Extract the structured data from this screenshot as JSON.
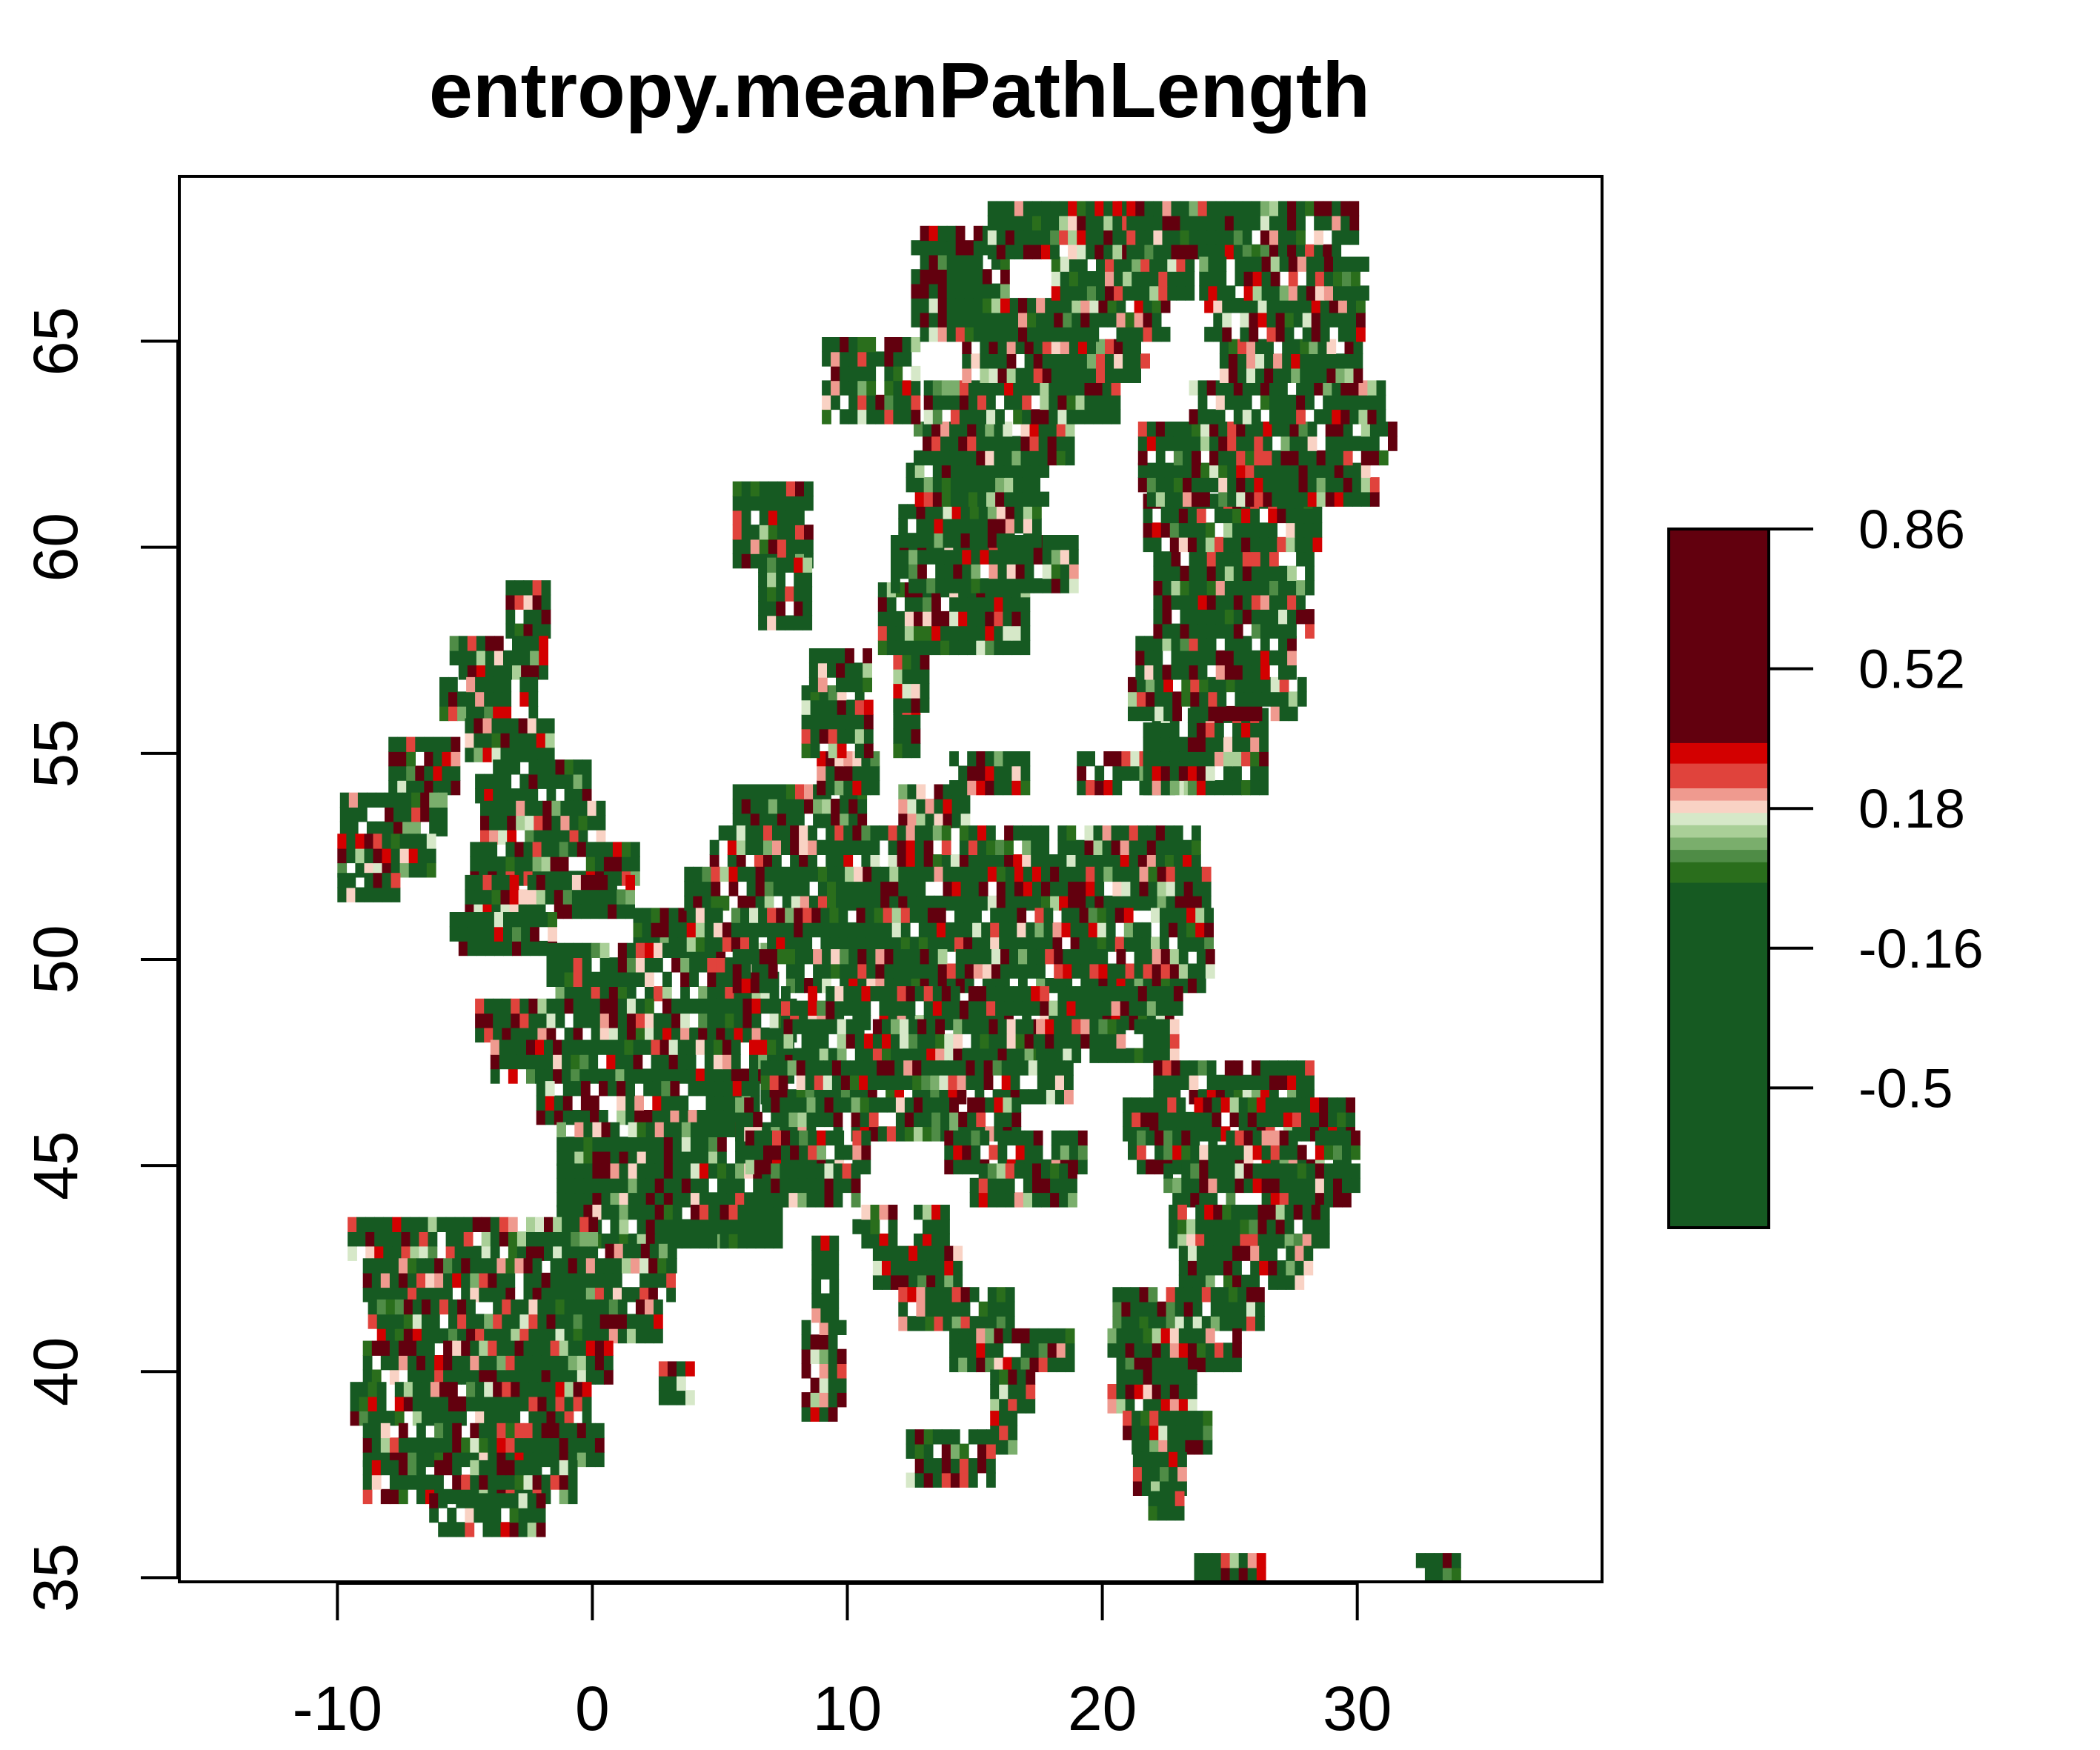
{
  "chart_data": {
    "type": "heatmap",
    "title": "entropy.meanPathLength",
    "xlabel": "",
    "ylabel": "",
    "xlim": [
      -16.2,
      39.6
    ],
    "ylim": [
      34.9,
      69.0
    ],
    "x_ticks": [
      -10,
      0,
      10,
      20,
      30
    ],
    "x_tick_labels": [
      "-10",
      "0",
      "10",
      "20",
      "30"
    ],
    "y_ticks": [
      35,
      40,
      45,
      50,
      55,
      60,
      65
    ],
    "y_tick_labels": [
      "35",
      "40",
      "45",
      "50",
      "55",
      "60",
      "65"
    ],
    "grid": false,
    "legend": "right",
    "color_scale": {
      "min": -0.84,
      "max": 0.86,
      "ticks": [
        0.86,
        0.52,
        0.18,
        -0.16,
        -0.5
      ],
      "tick_labels": [
        "0.86",
        "0.52",
        "0.18",
        "-0.16",
        "-0.5"
      ],
      "bands": [
        {
          "from": -0.84,
          "to": 0.0,
          "color": "#165a22"
        },
        {
          "from": 0.0,
          "to": 0.05,
          "color": "#2a6e1c"
        },
        {
          "from": 0.05,
          "to": 0.08,
          "color": "#4f8c46"
        },
        {
          "from": 0.08,
          "to": 0.11,
          "color": "#7aae6c"
        },
        {
          "from": 0.11,
          "to": 0.14,
          "color": "#a9cf97"
        },
        {
          "from": 0.14,
          "to": 0.17,
          "color": "#d6e8c8"
        },
        {
          "from": 0.17,
          "to": 0.2,
          "color": "#f9d2c4"
        },
        {
          "from": 0.2,
          "to": 0.23,
          "color": "#ef9a8f"
        },
        {
          "from": 0.23,
          "to": 0.29,
          "color": "#e0433c"
        },
        {
          "from": 0.29,
          "to": 0.34,
          "color": "#d30000"
        },
        {
          "from": 0.34,
          "to": 0.86,
          "color": "#62000e"
        }
      ]
    },
    "regions": [
      {
        "lat": [
          57.8,
          58.9
        ],
        "lon": [
          [
            -3.4,
            -1.8
          ]
        ]
      },
      {
        "lat": [
          56.8,
          57.8
        ],
        "lon": [
          [
            -5.6,
            -1.9
          ]
        ]
      },
      {
        "lat": [
          55.8,
          56.8
        ],
        "lon": [
          [
            -6.0,
            -2.5
          ]
        ]
      },
      {
        "lat": [
          54.8,
          55.8
        ],
        "lon": [
          [
            -5.0,
            -1.6
          ]
        ]
      },
      {
        "lat": [
          53.8,
          54.8
        ],
        "lon": [
          [
            -4.6,
            -0.3
          ]
        ]
      },
      {
        "lat": [
          52.8,
          53.8
        ],
        "lon": [
          [
            -4.4,
            0.4
          ]
        ]
      },
      {
        "lat": [
          51.8,
          52.8
        ],
        "lon": [
          [
            -4.8,
            1.6
          ]
        ]
      },
      {
        "lat": [
          51.0,
          51.8
        ],
        "lon": [
          [
            -5.0,
            1.4
          ]
        ]
      },
      {
        "lat": [
          50.1,
          51.0
        ],
        "lon": [
          [
            -5.6,
            -1.5
          ]
        ]
      },
      {
        "lat": [
          54.0,
          55.3
        ],
        "lon": [
          [
            -8.0,
            -5.5
          ]
        ]
      },
      {
        "lat": [
          53.0,
          54.0
        ],
        "lon": [
          [
            -9.9,
            -6.0
          ]
        ]
      },
      {
        "lat": [
          52.0,
          53.0
        ],
        "lon": [
          [
            -10.0,
            -6.2
          ]
        ]
      },
      {
        "lat": [
          51.4,
          52.0
        ],
        "lon": [
          [
            -10.0,
            -7.8
          ]
        ]
      },
      {
        "lat": [
          50.2,
          51.1
        ],
        "lon": [
          [
            1.6,
            4.6
          ]
        ]
      },
      {
        "lat": [
          49.0,
          50.2
        ],
        "lon": [
          [
            -1.8,
            7.2
          ]
        ]
      },
      {
        "lat": [
          48.0,
          49.0
        ],
        "lon": [
          [
            -4.6,
            7.8
          ]
        ]
      },
      {
        "lat": [
          47.0,
          48.0
        ],
        "lon": [
          [
            -4.0,
            7.6
          ]
        ]
      },
      {
        "lat": [
          46.0,
          47.0
        ],
        "lon": [
          [
            -2.2,
            6.5
          ]
        ]
      },
      {
        "lat": [
          45.0,
          46.0
        ],
        "lon": [
          [
            -1.4,
            6.8
          ]
        ]
      },
      {
        "lat": [
          44.0,
          45.0
        ],
        "lon": [
          [
            -1.4,
            7.4
          ]
        ]
      },
      {
        "lat": [
          43.0,
          44.0
        ],
        "lon": [
          [
            -1.4,
            5.0
          ],
          [
            5.0,
            7.2
          ]
        ]
      },
      {
        "lat": [
          42.4,
          43.0
        ],
        "lon": [
          [
            0.5,
            3.3
          ]
        ]
      },
      {
        "lat": [
          42.7,
          43.6
        ],
        "lon": [
          [
            -9.6,
            0.0
          ]
        ]
      },
      {
        "lat": [
          41.7,
          42.7
        ],
        "lon": [
          [
            -9.0,
            3.2
          ]
        ]
      },
      {
        "lat": [
          40.7,
          41.7
        ],
        "lon": [
          [
            -8.8,
            2.4
          ]
        ]
      },
      {
        "lat": [
          39.7,
          40.7
        ],
        "lon": [
          [
            -9.0,
            0.7
          ]
        ]
      },
      {
        "lat": [
          38.7,
          39.7
        ],
        "lon": [
          [
            -9.5,
            -0.1
          ]
        ]
      },
      {
        "lat": [
          37.7,
          38.7
        ],
        "lon": [
          [
            -9.0,
            0.2
          ]
        ]
      },
      {
        "lat": [
          36.8,
          37.7
        ],
        "lon": [
          [
            -9.0,
            -0.8
          ]
        ]
      },
      {
        "lat": [
          36.0,
          36.8
        ],
        "lon": [
          [
            -6.4,
            -2.0
          ]
        ]
      },
      {
        "lat": [
          53.2,
          54.0
        ],
        "lon": [
          [
            5.5,
            10.5
          ],
          [
            12.0,
            14.5
          ]
        ]
      },
      {
        "lat": [
          52.2,
          53.2
        ],
        "lon": [
          [
            4.6,
            23.6
          ]
        ]
      },
      {
        "lat": [
          51.2,
          52.2
        ],
        "lon": [
          [
            3.6,
            24.0
          ]
        ]
      },
      {
        "lat": [
          50.2,
          51.2
        ],
        "lon": [
          [
            3.0,
            24.2
          ]
        ]
      },
      {
        "lat": [
          49.2,
          50.2
        ],
        "lon": [
          [
            5.5,
            24.4
          ]
        ]
      },
      {
        "lat": [
          48.3,
          49.2
        ],
        "lon": [
          [
            7.4,
            23.0
          ]
        ]
      },
      {
        "lat": [
          47.5,
          48.3
        ],
        "lon": [
          [
            7.5,
            17.4
          ],
          [
            17.4,
            22.8
          ]
        ]
      },
      {
        "lat": [
          46.5,
          47.5
        ],
        "lon": [
          [
            6.6,
            18.6
          ],
          [
            22.0,
            28.2
          ]
        ]
      },
      {
        "lat": [
          45.6,
          46.5
        ],
        "lon": [
          [
            5.6,
            16.5
          ],
          [
            20.8,
            29.8
          ]
        ]
      },
      {
        "lat": [
          44.8,
          45.6
        ],
        "lon": [
          [
            6.0,
            10.8
          ],
          [
            13.8,
            19.2
          ],
          [
            21.0,
            30.0
          ]
        ]
      },
      {
        "lat": [
          44.0,
          44.8
        ],
        "lon": [
          [
            7.0,
            10.4
          ],
          [
            14.8,
            19.0
          ],
          [
            22.4,
            29.8
          ]
        ]
      },
      {
        "lat": [
          54.0,
          54.9
        ],
        "lon": [
          [
            8.8,
            11.2
          ],
          [
            14.0,
            17.0
          ],
          [
            19.0,
            23.5
          ]
        ]
      },
      {
        "lat": [
          54.9,
          56.5
        ],
        "lon": [
          [
            8.2,
            10.8
          ],
          [
            11.8,
            12.8
          ]
        ]
      },
      {
        "lat": [
          56.5,
          57.5
        ],
        "lon": [
          [
            8.5,
            10.6
          ]
        ]
      },
      {
        "lat": [
          54.0,
          55.8
        ],
        "lon": [
          [
            21.6,
            26.5
          ]
        ]
      },
      {
        "lat": [
          55.8,
          56.8
        ],
        "lon": [
          [
            21.0,
            27.8
          ]
        ]
      },
      {
        "lat": [
          56.8,
          57.8
        ],
        "lon": [
          [
            21.3,
            27.6
          ]
        ]
      },
      {
        "lat": [
          57.8,
          59.6
        ],
        "lon": [
          [
            22.0,
            28.0
          ]
        ]
      },
      {
        "lat": [
          43.0,
          44.0
        ],
        "lon": [
          [
            10.2,
            11.6
          ],
          [
            12.6,
            13.8
          ],
          [
            22.6,
            28.6
          ]
        ]
      },
      {
        "lat": [
          42.0,
          43.0
        ],
        "lon": [
          [
            11.0,
            14.2
          ],
          [
            23.0,
            28.0
          ]
        ]
      },
      {
        "lat": [
          41.0,
          42.0
        ],
        "lon": [
          [
            12.0,
            16.2
          ],
          [
            20.4,
            26.2
          ]
        ]
      },
      {
        "lat": [
          40.0,
          41.0
        ],
        "lon": [
          [
            14.0,
            18.6
          ],
          [
            20.2,
            25.2
          ]
        ]
      },
      {
        "lat": [
          39.0,
          40.0
        ],
        "lon": [
          [
            15.6,
            17.2
          ],
          [
            20.2,
            23.6
          ]
        ]
      },
      {
        "lat": [
          38.0,
          39.0
        ],
        "lon": [
          [
            15.6,
            16.4
          ],
          [
            20.8,
            24.0
          ]
        ]
      },
      {
        "lat": [
          37.0,
          38.0
        ],
        "lon": [
          [
            21.2,
            23.2
          ]
        ]
      },
      {
        "lat": [
          36.4,
          37.0
        ],
        "lon": [
          [
            21.8,
            23.0
          ]
        ]
      },
      {
        "lat": [
          37.2,
          38.3
        ],
        "lon": [
          [
            12.3,
            15.6
          ]
        ]
      },
      {
        "lat": [
          38.8,
          41.2
        ],
        "lon": [
          [
            8.2,
            9.8
          ]
        ]
      },
      {
        "lat": [
          41.2,
          43.0
        ],
        "lon": [
          [
            8.6,
            9.6
          ]
        ]
      },
      {
        "lat": [
          39.2,
          40.0
        ],
        "lon": [
          [
            2.6,
            4.0
          ]
        ]
      },
      {
        "lat": [
          34.9,
          35.6
        ],
        "lon": [
          [
            23.6,
            26.3
          ]
        ]
      },
      {
        "lat": [
          34.9,
          35.3
        ],
        "lon": [
          [
            32.3,
            34.0
          ]
        ]
      },
      {
        "lat": [
          56.0,
          57.4
        ],
        "lon": [
          [
            11.8,
            13.0
          ]
        ]
      },
      {
        "lat": [
          57.4,
          58.9
        ],
        "lon": [
          [
            11.2,
            16.8
          ]
        ]
      },
      {
        "lat": [
          58.9,
          60.0
        ],
        "lon": [
          [
            11.7,
            19.0
          ]
        ]
      },
      {
        "lat": [
          60.0,
          61.0
        ],
        "lon": [
          [
            12.0,
            17.6
          ]
        ]
      },
      {
        "lat": [
          61.0,
          62.0
        ],
        "lon": [
          [
            12.3,
            17.6
          ]
        ]
      },
      {
        "lat": [
          62.0,
          63.0
        ],
        "lon": [
          [
            12.6,
            18.6
          ]
        ]
      },
      {
        "lat": [
          63.0,
          64.0
        ],
        "lon": [
          [
            13.0,
            20.6
          ]
        ]
      },
      {
        "lat": [
          64.0,
          65.0
        ],
        "lon": [
          [
            14.5,
            21.6
          ]
        ]
      },
      {
        "lat": [
          65.0,
          66.0
        ],
        "lon": [
          [
            16.0,
            22.5
          ]
        ]
      },
      {
        "lat": [
          66.0,
          67.0
        ],
        "lon": [
          [
            18.0,
            23.5
          ]
        ]
      },
      {
        "lat": [
          67.0,
          68.3
        ],
        "lon": [
          [
            20.6,
            30.0
          ]
        ]
      },
      {
        "lat": [
          59.9,
          61.0
        ],
        "lon": [
          [
            21.6,
            28.6
          ]
        ]
      },
      {
        "lat": [
          61.0,
          62.0
        ],
        "lon": [
          [
            21.4,
            30.6
          ]
        ]
      },
      {
        "lat": [
          62.0,
          63.0
        ],
        "lon": [
          [
            21.4,
            31.5
          ]
        ]
      },
      {
        "lat": [
          63.0,
          64.0
        ],
        "lon": [
          [
            23.4,
            31.0
          ]
        ]
      },
      {
        "lat": [
          64.0,
          65.0
        ],
        "lon": [
          [
            24.6,
            30.2
          ]
        ]
      },
      {
        "lat": [
          65.0,
          66.0
        ],
        "lon": [
          [
            24.0,
            30.0
          ]
        ]
      },
      {
        "lat": [
          66.0,
          67.0
        ],
        "lon": [
          [
            23.8,
            30.2
          ]
        ]
      },
      {
        "lat": [
          63.0,
          65.0
        ],
        "lon": [
          [
            9.0,
            12.5
          ]
        ]
      },
      {
        "lat": [
          65.0,
          67.5
        ],
        "lon": [
          [
            12.5,
            16.0
          ]
        ]
      },
      {
        "lat": [
          67.0,
          68.3
        ],
        "lon": [
          [
            15.5,
            20.5
          ]
        ]
      },
      {
        "lat": [
          59.5,
          61.5
        ],
        "lon": [
          [
            5.5,
            8.5
          ]
        ]
      },
      {
        "lat": [
          58.0,
          59.5
        ],
        "lon": [
          [
            6.5,
            8.5
          ]
        ]
      }
    ]
  }
}
